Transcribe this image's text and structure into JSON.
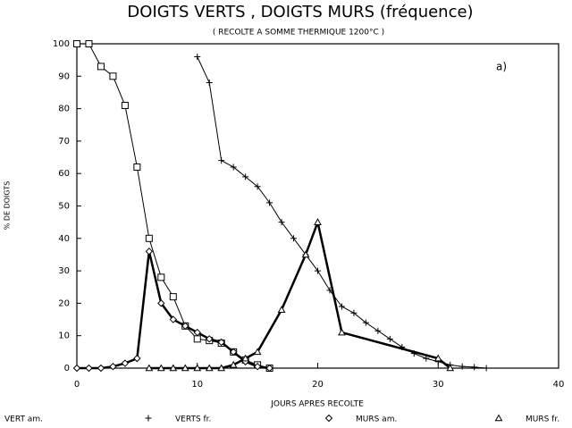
{
  "chart_data": {
    "type": "line",
    "title": "DOIGTS VERTS , DOIGTS MURS (fréquence)",
    "subtitle": "( RECOLTE A SOMME THERMIQUE 1200°C )",
    "annotation": "a)",
    "x_label": "JOURS APRES RECOLTE",
    "y_label": "% DE DOIGTS",
    "xlim": [
      0,
      40
    ],
    "xticks": [
      0,
      10,
      20,
      30,
      40
    ],
    "ylim": [
      0,
      100
    ],
    "yticks": [
      0,
      10,
      20,
      30,
      40,
      50,
      60,
      70,
      80,
      90,
      100
    ],
    "grid": false,
    "series": [
      {
        "name": "VERT am.",
        "color": "#000000",
        "marker": "square",
        "linewidth": 1,
        "x": [
          0,
          1,
          2,
          3,
          4,
          5,
          6,
          7,
          8,
          9,
          10,
          11,
          12,
          13,
          14,
          15,
          16
        ],
        "values": [
          100,
          100,
          93,
          90,
          81,
          62,
          40,
          28,
          22,
          13,
          9,
          8.5,
          7.7,
          5,
          2.5,
          1,
          0
        ]
      },
      {
        "name": "VERTS fr.",
        "color": "#000000",
        "marker": "plus",
        "linewidth": 1,
        "x": [
          10,
          11,
          12,
          13,
          14,
          15,
          16,
          17,
          18,
          19,
          20,
          21,
          22,
          23,
          24,
          25,
          26,
          27,
          28,
          29,
          30,
          31,
          32,
          33,
          34
        ],
        "values": [
          96,
          88,
          64,
          62,
          59,
          56,
          51,
          45,
          40,
          35,
          30,
          24,
          19,
          17,
          14,
          11.5,
          9,
          6.5,
          4.5,
          3,
          2,
          1,
          0.5,
          0.3,
          0
        ]
      },
      {
        "name": "MURS am.",
        "color": "#000000",
        "marker": "diamond",
        "linewidth": 2.5,
        "x": [
          0,
          1,
          2,
          3,
          4,
          5,
          6,
          7,
          8,
          9,
          10,
          11,
          12,
          13,
          14,
          15,
          16
        ],
        "values": [
          0,
          0,
          0,
          0.5,
          1.5,
          3,
          36,
          20,
          15,
          13,
          11,
          9,
          8,
          5,
          2,
          0.5,
          0
        ]
      },
      {
        "name": "MURS fr.",
        "color": "#000000",
        "marker": "triangle",
        "linewidth": 2.5,
        "x": [
          6,
          7,
          8,
          9,
          10,
          11,
          12,
          13,
          14,
          15,
          17,
          19,
          20,
          22,
          30,
          31
        ],
        "values": [
          0,
          0,
          0,
          0,
          0,
          0,
          0,
          1,
          3,
          5,
          18,
          35,
          45,
          11,
          3,
          0
        ]
      }
    ]
  }
}
